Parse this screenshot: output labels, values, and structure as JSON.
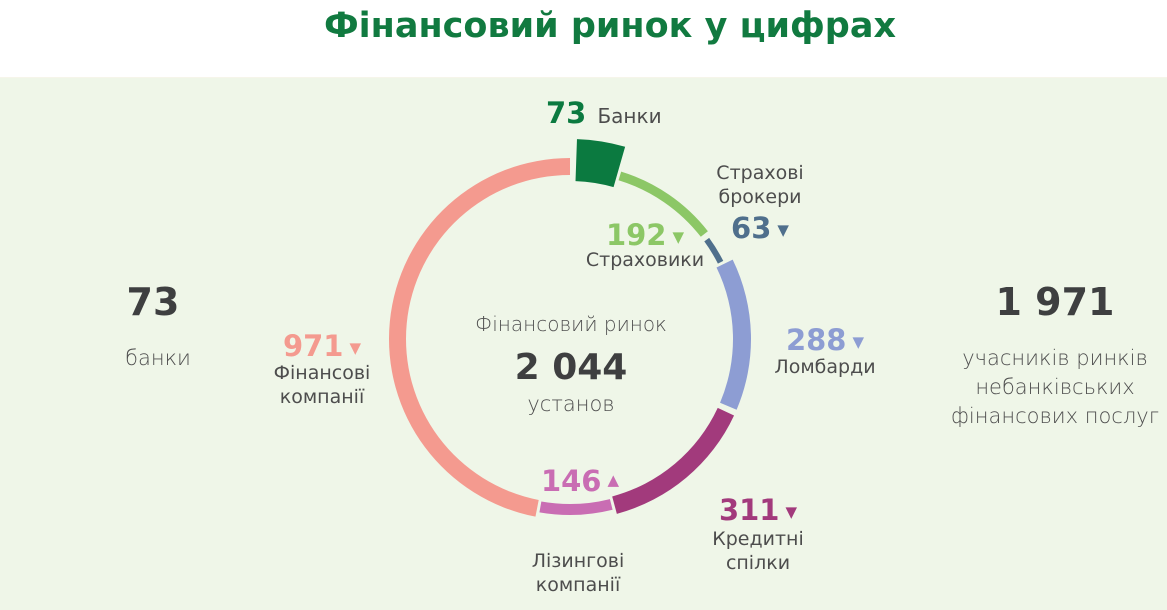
{
  "header": {
    "title": "Фінансовий ринок у цифрах"
  },
  "left_stat": {
    "value": "73",
    "label": "банки"
  },
  "right_stat": {
    "value": "1 971",
    "label_lines": [
      "учасників ринків",
      "небанківських",
      "фінансових послуг"
    ]
  },
  "center": {
    "caption": "Фінансовий ринок",
    "value": "2 044",
    "unit": "установ"
  },
  "segments": [
    {
      "key": "banks",
      "value": "73",
      "label_lines": [
        "Банки"
      ],
      "color": "#0b7a40",
      "trend": ""
    },
    {
      "key": "insurers",
      "value": "192",
      "label_lines": [
        "Страховики"
      ],
      "color": "#8cc766",
      "trend": "▼"
    },
    {
      "key": "brokers",
      "value": "63",
      "label_lines": [
        "Страхові",
        "брокери"
      ],
      "color": "#4f6f8c",
      "trend": "▼"
    },
    {
      "key": "pawnshops",
      "value": "288",
      "label_lines": [
        "Ломбарди"
      ],
      "color": "#8d9dd3",
      "trend": "▼"
    },
    {
      "key": "credit_unions",
      "value": "311",
      "label_lines": [
        "Кредитні спілки"
      ],
      "color": "#a23a7c",
      "trend": "▼"
    },
    {
      "key": "leasing",
      "value": "146",
      "label_lines": [
        "Лізингові",
        "компанії"
      ],
      "color": "#c96db3",
      "trend": "▲"
    },
    {
      "key": "finance_companies",
      "value": "971",
      "label_lines": [
        "Фінансові",
        "компанії"
      ],
      "color": "#f49a8f",
      "trend": "▼"
    }
  ],
  "chart_data": {
    "type": "pie",
    "title": "Фінансовий ринок у цифрах",
    "subtitle": "Фінансовий ринок 2 044 установ",
    "total": 2044,
    "categories": [
      "Банки",
      "Страховики",
      "Страхові брокери",
      "Ломбарди",
      "Кредитні спілки",
      "Лізингові компанії",
      "Фінансові компанії"
    ],
    "values": [
      73,
      192,
      63,
      288,
      311,
      146,
      971
    ],
    "trends": [
      "",
      "down",
      "down",
      "down",
      "down",
      "up",
      "down"
    ],
    "colors": [
      "#0b7a40",
      "#8cc766",
      "#4f6f8c",
      "#8d9dd3",
      "#a23a7c",
      "#c96db3",
      "#f49a8f"
    ],
    "annotations": [
      {
        "value": 73,
        "text": "банки"
      },
      {
        "value": 1971,
        "text": "учасників ринків небанківських фінансових послуг"
      }
    ],
    "style": "donut"
  }
}
